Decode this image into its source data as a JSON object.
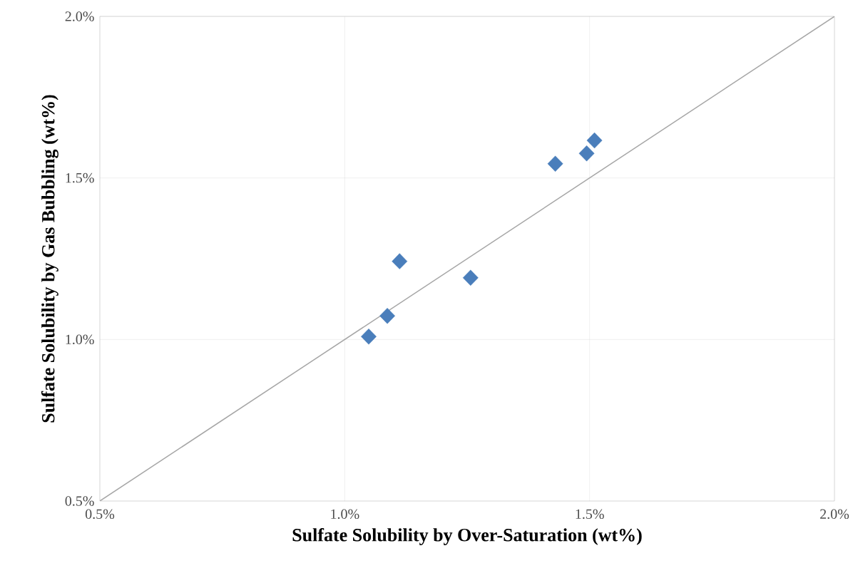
{
  "chart_data": {
    "type": "scatter",
    "xlabel": "Sulfate Solubility by Over-Saturation (wt%)",
    "ylabel": "Sulfate Solubility by Gas Bubbling (wt%)",
    "series": [
      {
        "color": "#4a7ebb",
        "marker": "diamond",
        "x": [
          1.049,
          1.087,
          1.112,
          1.257,
          1.43,
          1.494,
          1.51
        ],
        "values": [
          1.009,
          1.073,
          1.242,
          1.191,
          1.544,
          1.576,
          1.616
        ]
      },
      {
        "type": "line",
        "marker": "none",
        "color": "#a6a6a6",
        "x": [
          0.5,
          2.0
        ],
        "values": [
          0.5,
          2.0
        ]
      }
    ],
    "grid": true,
    "xlim": [
      0.5,
      2.0
    ],
    "ylim": [
      0.5,
      2.0
    ],
    "xticks": [
      {
        "value": 0.5,
        "label": "0.5%"
      },
      {
        "value": 1.0,
        "label": "1.0%"
      },
      {
        "value": 1.5,
        "label": "1.5%"
      },
      {
        "value": 2.0,
        "label": "2.0%"
      }
    ],
    "yticks": [
      {
        "value": 0.5,
        "label": "0.5%"
      },
      {
        "value": 1.0,
        "label": "1.0%"
      },
      {
        "value": 1.5,
        "label": "1.5%"
      },
      {
        "value": 2.0,
        "label": "2.0%"
      }
    ]
  }
}
